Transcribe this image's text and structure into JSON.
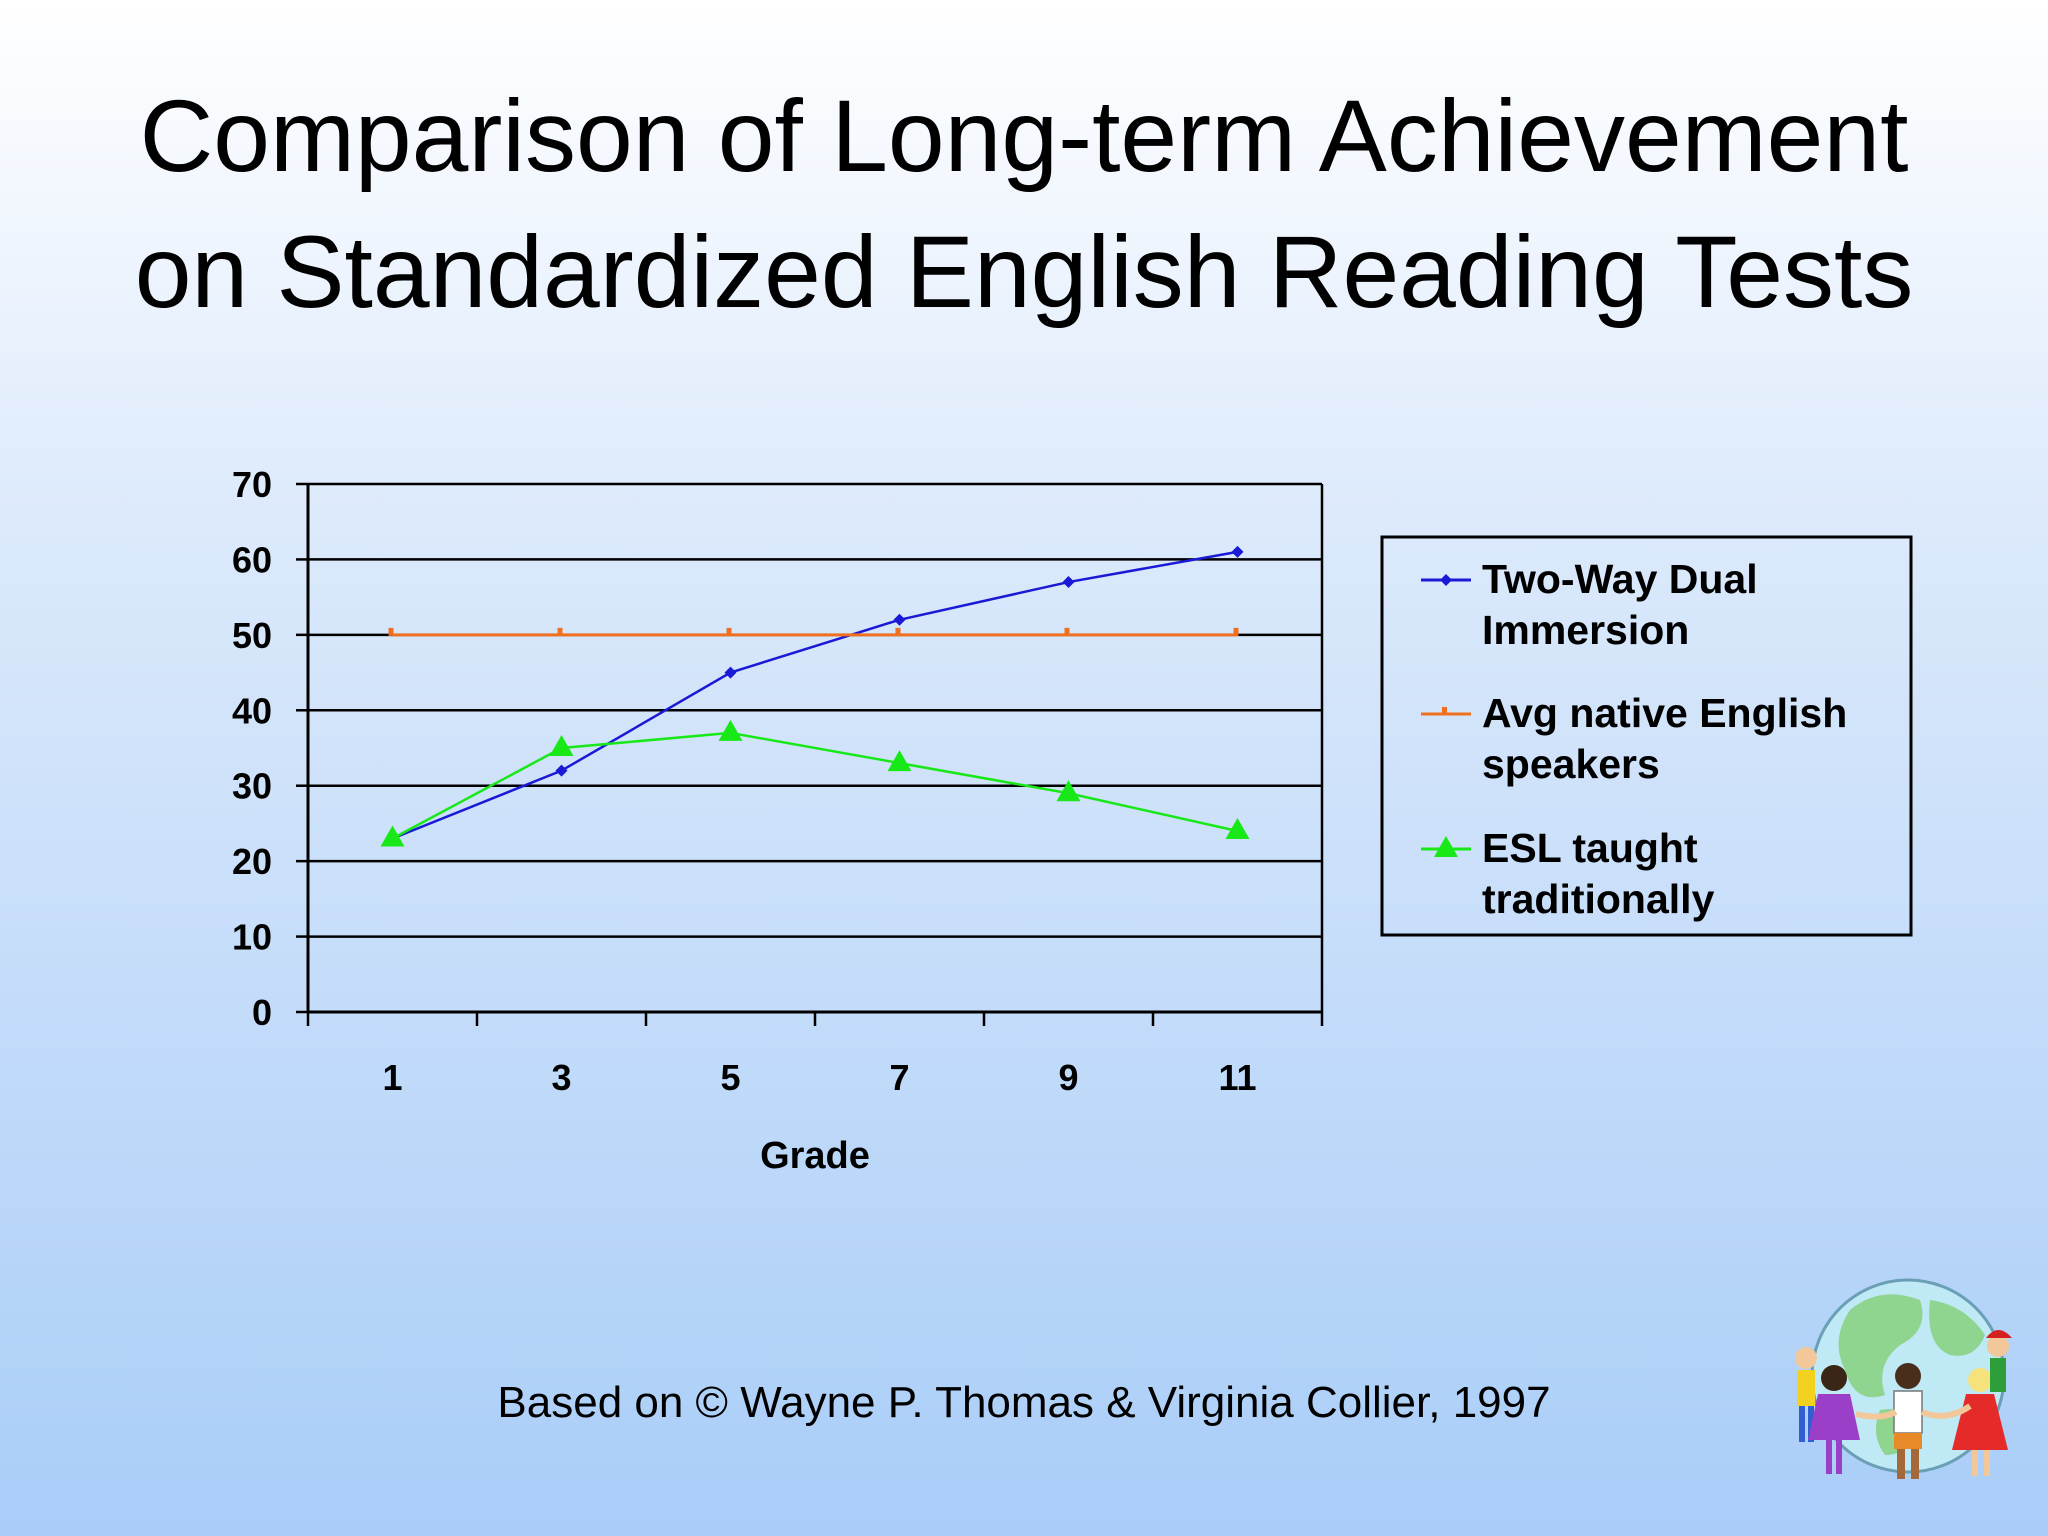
{
  "slide": {
    "title_line1": "Comparison of Long-term Achievement",
    "title_line2": "on Standardized English Reading Tests",
    "caption": "Based on © Wayne P. Thomas & Virginia Collier, 1997",
    "illustration": "children-around-globe-clipart"
  },
  "chart_data": {
    "type": "line",
    "title": "",
    "xlabel": "Grade",
    "ylabel": "",
    "categories": [
      "1",
      "3",
      "5",
      "7",
      "9",
      "11"
    ],
    "ylim": [
      0,
      70
    ],
    "yticks": [
      0,
      10,
      20,
      30,
      40,
      50,
      60,
      70
    ],
    "grid": true,
    "legend_position": "right",
    "series": [
      {
        "name": "Two-Way Dual Immersion",
        "values": [
          23,
          32,
          45,
          52,
          57,
          61
        ],
        "color": "#1a1ad6",
        "marker": "diamond"
      },
      {
        "name": "Avg native English speakers",
        "values": [
          50,
          50,
          50,
          50,
          50,
          50
        ],
        "color": "#f07020",
        "marker": "dash"
      },
      {
        "name": "ESL taught traditionally",
        "values": [
          23,
          35,
          37,
          33,
          29,
          24
        ],
        "color": "#18e818",
        "marker": "triangle"
      }
    ]
  }
}
